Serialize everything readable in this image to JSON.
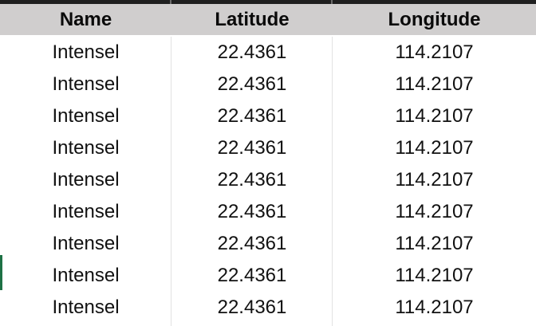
{
  "table": {
    "headers": [
      "Name",
      "Latitude",
      "Longitude"
    ],
    "rows": [
      [
        "Intensel",
        "22.4361",
        "114.2107"
      ],
      [
        "Intensel",
        "22.4361",
        "114.2107"
      ],
      [
        "Intensel",
        "22.4361",
        "114.2107"
      ],
      [
        "Intensel",
        "22.4361",
        "114.2107"
      ],
      [
        "Intensel",
        "22.4361",
        "114.2107"
      ],
      [
        "Intensel",
        "22.4361",
        "114.2107"
      ],
      [
        "Intensel",
        "22.4361",
        "114.2107"
      ],
      [
        "Intensel",
        "22.4361",
        "114.2107"
      ],
      [
        "Intensel",
        "22.4361",
        "114.2107"
      ]
    ]
  },
  "colors": {
    "header_background": "#d0cece",
    "cell_background": "#ffffff",
    "selection_marker": "#1e7145"
  }
}
